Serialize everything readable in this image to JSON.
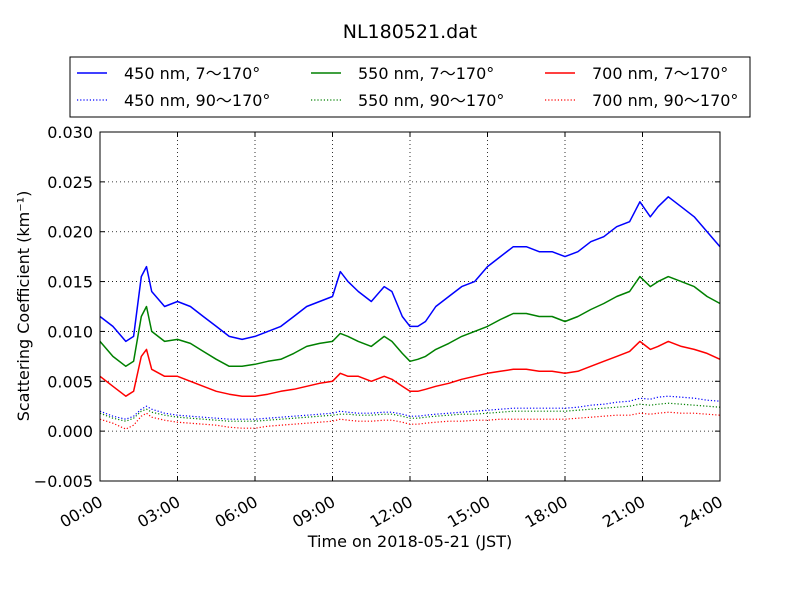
{
  "chart_data": {
    "type": "line",
    "title": "NL180521.dat",
    "xlabel": "Time on 2018-05-21 (JST)",
    "ylabel": "Scattering Coefficient (km⁻¹)",
    "xlim": [
      0,
      24
    ],
    "ylim": [
      -0.005,
      0.03
    ],
    "x_ticks": [
      "00:00",
      "03:00",
      "06:00",
      "09:00",
      "12:00",
      "15:00",
      "18:00",
      "21:00",
      "24:00"
    ],
    "y_ticks": [
      "−0.005",
      "0.000",
      "0.005",
      "0.010",
      "0.015",
      "0.020",
      "0.025",
      "0.030"
    ],
    "grid": true,
    "legend_position": "top",
    "x": [
      0,
      0.5,
      1,
      1.3,
      1.6,
      1.8,
      2,
      2.5,
      3,
      3.5,
      4,
      4.5,
      5,
      5.5,
      6,
      6.5,
      7,
      7.5,
      8,
      8.5,
      9,
      9.3,
      9.6,
      10,
      10.5,
      11,
      11.3,
      11.7,
      12,
      12.3,
      12.6,
      13,
      13.5,
      14,
      14.5,
      15,
      15.5,
      16,
      16.5,
      17,
      17.5,
      18,
      18.5,
      19,
      19.5,
      20,
      20.5,
      20.9,
      21.3,
      21.6,
      22,
      22.5,
      23,
      23.5,
      24
    ],
    "series": [
      {
        "name": "450 nm, 7～170°",
        "color": "#0000ff",
        "style": "solid",
        "values": [
          0.0115,
          0.0105,
          0.009,
          0.0095,
          0.0155,
          0.0165,
          0.014,
          0.0125,
          0.013,
          0.0125,
          0.0115,
          0.0105,
          0.0095,
          0.0092,
          0.0095,
          0.01,
          0.0105,
          0.0115,
          0.0125,
          0.013,
          0.0135,
          0.016,
          0.015,
          0.014,
          0.013,
          0.0145,
          0.014,
          0.0115,
          0.0105,
          0.0105,
          0.011,
          0.0125,
          0.0135,
          0.0145,
          0.015,
          0.0165,
          0.0175,
          0.0185,
          0.0185,
          0.018,
          0.018,
          0.0175,
          0.018,
          0.019,
          0.0195,
          0.0205,
          0.021,
          0.023,
          0.0215,
          0.0225,
          0.0235,
          0.0225,
          0.0215,
          0.02,
          0.0185
        ]
      },
      {
        "name": "450 nm, 90～170°",
        "color": "#0000ff",
        "style": "dotted",
        "values": [
          0.002,
          0.0015,
          0.0012,
          0.0015,
          0.0022,
          0.0025,
          0.0022,
          0.0018,
          0.0016,
          0.0015,
          0.0014,
          0.0013,
          0.0012,
          0.0012,
          0.0012,
          0.0013,
          0.0014,
          0.0015,
          0.0016,
          0.0017,
          0.0018,
          0.002,
          0.0019,
          0.0018,
          0.0018,
          0.0019,
          0.0019,
          0.0017,
          0.0015,
          0.0015,
          0.0016,
          0.0017,
          0.0018,
          0.0019,
          0.002,
          0.0021,
          0.0022,
          0.0023,
          0.0023,
          0.0023,
          0.0023,
          0.0023,
          0.0024,
          0.0026,
          0.0027,
          0.0029,
          0.003,
          0.0033,
          0.0032,
          0.0034,
          0.0035,
          0.0034,
          0.0033,
          0.0031,
          0.003
        ]
      },
      {
        "name": "550 nm, 7～170°",
        "color": "#008000",
        "style": "solid",
        "values": [
          0.009,
          0.0075,
          0.0065,
          0.007,
          0.0115,
          0.0125,
          0.01,
          0.009,
          0.0092,
          0.0088,
          0.008,
          0.0072,
          0.0065,
          0.0065,
          0.0067,
          0.007,
          0.0072,
          0.0078,
          0.0085,
          0.0088,
          0.009,
          0.0098,
          0.0095,
          0.009,
          0.0085,
          0.0095,
          0.009,
          0.0078,
          0.007,
          0.0072,
          0.0075,
          0.0082,
          0.0088,
          0.0095,
          0.01,
          0.0105,
          0.0112,
          0.0118,
          0.0118,
          0.0115,
          0.0115,
          0.011,
          0.0115,
          0.0122,
          0.0128,
          0.0135,
          0.014,
          0.0155,
          0.0145,
          0.015,
          0.0155,
          0.015,
          0.0145,
          0.0135,
          0.0128
        ]
      },
      {
        "name": "550 nm, 90～170°",
        "color": "#008000",
        "style": "dotted",
        "values": [
          0.0018,
          0.0013,
          0.001,
          0.0013,
          0.002,
          0.0022,
          0.0019,
          0.0016,
          0.0014,
          0.0013,
          0.0012,
          0.0011,
          0.001,
          0.001,
          0.001,
          0.0011,
          0.0012,
          0.0013,
          0.0014,
          0.0015,
          0.0016,
          0.0017,
          0.0017,
          0.0016,
          0.0016,
          0.0017,
          0.0017,
          0.0015,
          0.0013,
          0.0013,
          0.0014,
          0.0015,
          0.0016,
          0.0017,
          0.0017,
          0.0018,
          0.0019,
          0.002,
          0.002,
          0.002,
          0.002,
          0.002,
          0.0021,
          0.0022,
          0.0023,
          0.0024,
          0.0025,
          0.0027,
          0.0026,
          0.0027,
          0.0028,
          0.0027,
          0.0026,
          0.0025,
          0.0024
        ]
      },
      {
        "name": "700 nm, 7～170°",
        "color": "#ff0000",
        "style": "solid",
        "values": [
          0.0055,
          0.0045,
          0.0035,
          0.004,
          0.0075,
          0.0082,
          0.0062,
          0.0055,
          0.0055,
          0.005,
          0.0045,
          0.004,
          0.0037,
          0.0035,
          0.0035,
          0.0037,
          0.004,
          0.0042,
          0.0045,
          0.0048,
          0.005,
          0.0058,
          0.0055,
          0.0055,
          0.005,
          0.0055,
          0.0052,
          0.0045,
          0.004,
          0.004,
          0.0042,
          0.0045,
          0.0048,
          0.0052,
          0.0055,
          0.0058,
          0.006,
          0.0062,
          0.0062,
          0.006,
          0.006,
          0.0058,
          0.006,
          0.0065,
          0.007,
          0.0075,
          0.008,
          0.009,
          0.0082,
          0.0085,
          0.009,
          0.0085,
          0.0082,
          0.0078,
          0.0072
        ]
      },
      {
        "name": "700 nm, 90～170°",
        "color": "#ff0000",
        "style": "dotted",
        "values": [
          0.0012,
          0.0008,
          0.0002,
          0.0006,
          0.0015,
          0.0018,
          0.0014,
          0.0011,
          0.0009,
          0.0008,
          0.0007,
          0.0006,
          0.0004,
          0.0003,
          0.0003,
          0.0005,
          0.0006,
          0.0007,
          0.0008,
          0.0009,
          0.001,
          0.0012,
          0.0011,
          0.001,
          0.001,
          0.0011,
          0.0011,
          0.0009,
          0.0007,
          0.0007,
          0.0008,
          0.0009,
          0.001,
          0.001,
          0.0011,
          0.0011,
          0.0012,
          0.0012,
          0.0012,
          0.0012,
          0.0012,
          0.0012,
          0.0013,
          0.0014,
          0.0015,
          0.0016,
          0.0016,
          0.0018,
          0.0017,
          0.0018,
          0.0019,
          0.0018,
          0.0018,
          0.0017,
          0.0016
        ]
      }
    ]
  }
}
